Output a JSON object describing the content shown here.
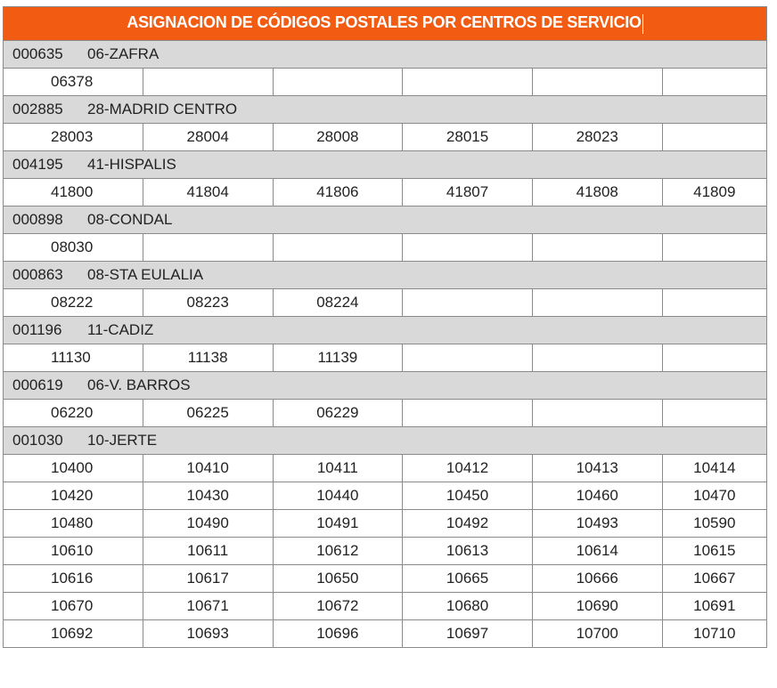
{
  "title": "ASIGNACION DE CÓDIGOS POSTALES POR CENTROS DE SERVICIO",
  "columns_per_row": 6,
  "groups": [
    {
      "code": "000635",
      "name": "06-ZAFRA",
      "postal_codes": [
        "06378"
      ]
    },
    {
      "code": "002885",
      "name": "28-MADRID CENTRO",
      "postal_codes": [
        "28003",
        "28004",
        "28008",
        "28015",
        "28023"
      ]
    },
    {
      "code": "004195",
      "name": "41-HISPALIS",
      "postal_codes": [
        "41800",
        "41804",
        "41806",
        "41807",
        "41808",
        "41809"
      ]
    },
    {
      "code": "000898",
      "name": "08-CONDAL",
      "postal_codes": [
        "08030"
      ]
    },
    {
      "code": "000863",
      "name": "08-STA EULALIA",
      "postal_codes": [
        "08222",
        "08223",
        "08224"
      ]
    },
    {
      "code": "001196",
      "name": "11-CADIZ",
      "postal_codes": [
        "11130",
        "11138",
        "11139"
      ]
    },
    {
      "code": "000619",
      "name": "06-V. BARROS",
      "postal_codes": [
        "06220",
        "06225",
        "06229"
      ]
    },
    {
      "code": "001030",
      "name": "10-JERTE",
      "postal_codes": [
        "10400",
        "10410",
        "10411",
        "10412",
        "10413",
        "10414",
        "10420",
        "10430",
        "10440",
        "10450",
        "10460",
        "10470",
        "10480",
        "10490",
        "10491",
        "10492",
        "10493",
        "10590",
        "10610",
        "10611",
        "10612",
        "10613",
        "10614",
        "10615",
        "10616",
        "10617",
        "10650",
        "10665",
        "10666",
        "10667",
        "10670",
        "10671",
        "10672",
        "10680",
        "10690",
        "10691",
        "10692",
        "10693",
        "10696",
        "10697",
        "10700",
        "10710"
      ]
    }
  ]
}
